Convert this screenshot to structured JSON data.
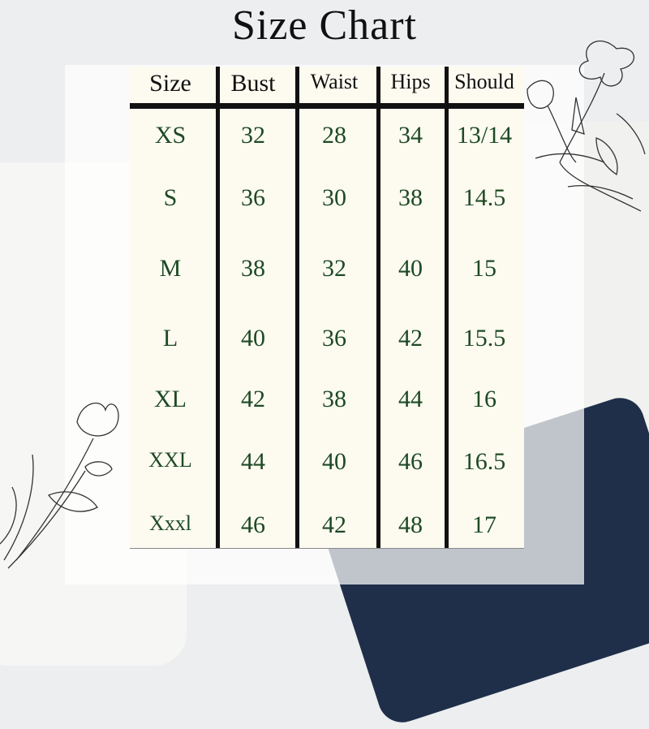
{
  "title": "Size Chart",
  "table": {
    "headers": [
      "Size",
      "Bust",
      "Waist",
      "Hips",
      "Should"
    ],
    "rows": [
      [
        "XS",
        "32",
        "28",
        "34",
        "13/14"
      ],
      [
        "S",
        "36",
        "30",
        "38",
        "14.5"
      ],
      [
        "M",
        "38",
        "32",
        "40",
        "15"
      ],
      [
        "L",
        "40",
        "36",
        "42",
        "15.5"
      ],
      [
        "XL",
        "42",
        "38",
        "44",
        "16"
      ],
      [
        "XXL",
        "44",
        "40",
        "46",
        "16.5"
      ],
      [
        "Xxxl",
        "46",
        "42",
        "48",
        "17"
      ]
    ]
  },
  "colors": {
    "value_text": "#1d4a24",
    "header_text": "#111111",
    "table_bg": "#fdfaf0"
  }
}
